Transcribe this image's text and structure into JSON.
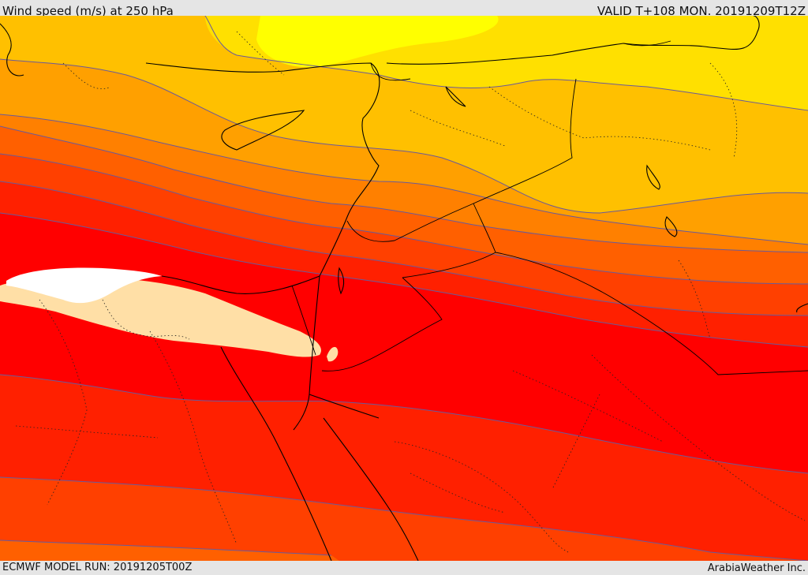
{
  "header": {
    "title": "Wind speed (m/s) at 250 hPa",
    "valid": "VALID T+108 MON. 20191209T12Z"
  },
  "footer": {
    "model_run": "ECMWF MODEL RUN: 20191205T00Z",
    "credit": "ArabiaWeather Inc."
  },
  "colors": {
    "band_yellow": "#ffff00",
    "band_gold": "#ffe000",
    "band_amber": "#ffc000",
    "band_orange_light": "#ffa000",
    "band_orange": "#ff8000",
    "band_orange_dark": "#ff6000",
    "band_red_orange": "#ff4000",
    "band_red_light": "#ff2000",
    "band_red": "#ff0000",
    "jet_peach": "#ffdfa6",
    "jet_white": "#ffffff",
    "contour": "#6a5a9a",
    "coastline": "#000000"
  }
}
